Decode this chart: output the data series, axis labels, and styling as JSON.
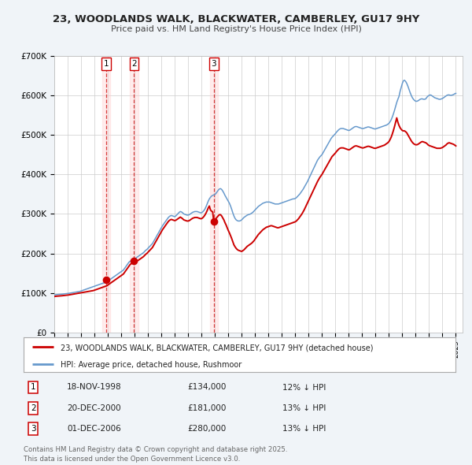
{
  "title": "23, WOODLANDS WALK, BLACKWATER, CAMBERLEY, GU17 9HY",
  "subtitle": "Price paid vs. HM Land Registry's House Price Index (HPI)",
  "background_color": "#f0f4f8",
  "plot_bg_color": "#ffffff",
  "ylim": [
    0,
    700000
  ],
  "yticks": [
    0,
    100000,
    200000,
    300000,
    400000,
    500000,
    600000,
    700000
  ],
  "ytick_labels": [
    "£0",
    "£100K",
    "£200K",
    "£300K",
    "£400K",
    "£500K",
    "£600K",
    "£700K"
  ],
  "xlim_start": 1995.0,
  "xlim_end": 2025.5,
  "xtick_years": [
    1995,
    1996,
    1997,
    1998,
    1999,
    2000,
    2001,
    2002,
    2003,
    2004,
    2005,
    2006,
    2007,
    2008,
    2009,
    2010,
    2011,
    2012,
    2013,
    2014,
    2015,
    2016,
    2017,
    2018,
    2019,
    2020,
    2021,
    2022,
    2023,
    2024,
    2025
  ],
  "red_line_color": "#cc0000",
  "blue_line_color": "#6699cc",
  "sale_marker_color": "#cc0000",
  "vline_color": "#cc0000",
  "vline_style": "--",
  "vline_alpha": 0.7,
  "sale_shade_color": "#ffcccc",
  "sale_shade_alpha": 0.35,
  "grid_color": "#cccccc",
  "legend_label_red": "23, WOODLANDS WALK, BLACKWATER, CAMBERLEY, GU17 9HY (detached house)",
  "legend_label_blue": "HPI: Average price, detached house, Rushmoor",
  "sales": [
    {
      "num": 1,
      "date": "18-NOV-1998",
      "year": 1998.88,
      "price": 134000,
      "pct": "12%",
      "dir": "↓"
    },
    {
      "num": 2,
      "date": "20-DEC-2000",
      "year": 2000.96,
      "price": 181000,
      "pct": "13%",
      "dir": "↓"
    },
    {
      "num": 3,
      "date": "01-DEC-2006",
      "year": 2006.92,
      "price": 280000,
      "pct": "13%",
      "dir": "↓"
    }
  ],
  "hpi_y": [
    95000,
    95500,
    95800,
    96000,
    96200,
    96500,
    96800,
    97000,
    97300,
    97500,
    97800,
    98000,
    98500,
    99000,
    99500,
    100000,
    100500,
    101000,
    101500,
    102000,
    102500,
    103000,
    103500,
    104000,
    105000,
    106000,
    107000,
    108000,
    109000,
    110000,
    111000,
    112000,
    113000,
    114000,
    115000,
    116000,
    117000,
    118000,
    119000,
    120000,
    121000,
    122000,
    123000,
    124000,
    125000,
    126000,
    127000,
    128000,
    130000,
    132000,
    134000,
    136000,
    138000,
    140000,
    142000,
    144000,
    146000,
    148000,
    150000,
    152000,
    154000,
    156000,
    158000,
    162000,
    166000,
    170000,
    174000,
    178000,
    180000,
    182000,
    184000,
    185000,
    186000,
    188000,
    190000,
    192000,
    194000,
    196000,
    198000,
    200000,
    202000,
    205000,
    208000,
    210000,
    213000,
    216000,
    219000,
    222000,
    225000,
    230000,
    235000,
    240000,
    245000,
    250000,
    255000,
    260000,
    265000,
    270000,
    274000,
    278000,
    282000,
    286000,
    290000,
    293000,
    295000,
    296000,
    295000,
    294000,
    293000,
    295000,
    298000,
    301000,
    304000,
    306000,
    305000,
    303000,
    300000,
    299000,
    298000,
    297000,
    297000,
    298000,
    300000,
    302000,
    304000,
    305000,
    306000,
    306000,
    306000,
    305000,
    304000,
    303000,
    303000,
    305000,
    308000,
    312000,
    318000,
    325000,
    332000,
    338000,
    342000,
    345000,
    347000,
    348000,
    349000,
    352000,
    356000,
    360000,
    363000,
    364000,
    362000,
    358000,
    353000,
    347000,
    342000,
    337000,
    332000,
    327000,
    320000,
    312000,
    303000,
    295000,
    289000,
    285000,
    283000,
    282000,
    282000,
    283000,
    285000,
    288000,
    291000,
    293000,
    295000,
    297000,
    298000,
    299000,
    300000,
    302000,
    304000,
    307000,
    310000,
    313000,
    316000,
    319000,
    321000,
    323000,
    325000,
    327000,
    328000,
    329000,
    330000,
    330000,
    330000,
    330000,
    329000,
    328000,
    327000,
    326000,
    325000,
    325000,
    325000,
    325000,
    326000,
    327000,
    328000,
    329000,
    330000,
    331000,
    332000,
    333000,
    334000,
    335000,
    336000,
    337000,
    338000,
    338000,
    339000,
    341000,
    344000,
    347000,
    350000,
    354000,
    358000,
    362000,
    367000,
    372000,
    377000,
    382000,
    388000,
    394000,
    400000,
    406000,
    412000,
    418000,
    424000,
    430000,
    436000,
    440000,
    444000,
    447000,
    450000,
    455000,
    460000,
    465000,
    470000,
    475000,
    480000,
    485000,
    490000,
    494000,
    497000,
    500000,
    503000,
    507000,
    510000,
    513000,
    515000,
    516000,
    516000,
    516000,
    515000,
    514000,
    513000,
    512000,
    511000,
    512000,
    514000,
    516000,
    518000,
    520000,
    521000,
    521000,
    520000,
    519000,
    518000,
    517000,
    516000,
    516000,
    517000,
    518000,
    519000,
    520000,
    520000,
    519000,
    518000,
    517000,
    516000,
    515000,
    515000,
    516000,
    517000,
    518000,
    519000,
    520000,
    521000,
    522000,
    523000,
    524000,
    525000,
    527000,
    529000,
    533000,
    538000,
    545000,
    553000,
    562000,
    572000,
    582000,
    590000,
    597000,
    610000,
    620000,
    630000,
    637000,
    638000,
    635000,
    630000,
    623000,
    615000,
    607000,
    600000,
    594000,
    590000,
    587000,
    585000,
    585000,
    586000,
    588000,
    590000,
    591000,
    591000,
    590000,
    590000,
    591000,
    595000,
    598000,
    600000,
    601000,
    600000,
    598000,
    596000,
    594000,
    593000,
    592000,
    591000,
    590000,
    590000,
    591000,
    592000,
    594000,
    596000,
    598000,
    600000,
    601000,
    601000,
    600000,
    600000,
    601000,
    602000,
    604000,
    605000
  ],
  "red_y": [
    91000,
    91500,
    91800,
    92000,
    92200,
    92500,
    92800,
    93000,
    93300,
    93500,
    93800,
    94000,
    94500,
    95000,
    95500,
    96000,
    96500,
    97000,
    97500,
    98000,
    98500,
    99000,
    99500,
    100000,
    100500,
    101000,
    101500,
    102000,
    102500,
    103000,
    103500,
    104000,
    104500,
    105000,
    105500,
    106000,
    107000,
    108000,
    109000,
    110000,
    111000,
    112000,
    113000,
    114000,
    115000,
    116000,
    117000,
    118000,
    120000,
    122000,
    124000,
    126000,
    128000,
    130000,
    132000,
    134000,
    136000,
    138000,
    140000,
    142000,
    144000,
    146000,
    148000,
    152000,
    156000,
    160000,
    164000,
    168000,
    172000,
    174000,
    176000,
    177000,
    178000,
    180000,
    181000,
    182000,
    184000,
    186000,
    188000,
    190000,
    192000,
    195000,
    198000,
    200000,
    203000,
    206000,
    209000,
    212000,
    215000,
    220000,
    225000,
    230000,
    235000,
    240000,
    245000,
    250000,
    255000,
    260000,
    264000,
    268000,
    272000,
    276000,
    280000,
    283000,
    285000,
    286000,
    285000,
    284000,
    283000,
    284000,
    286000,
    288000,
    290000,
    292000,
    290000,
    288000,
    285000,
    284000,
    283000,
    282000,
    282000,
    283000,
    285000,
    287000,
    289000,
    290000,
    291000,
    291000,
    291000,
    290000,
    289000,
    288000,
    288000,
    290000,
    293000,
    297000,
    302000,
    308000,
    315000,
    320000,
    310000,
    307000,
    305000,
    280000,
    285000,
    288000,
    292000,
    295000,
    298000,
    298000,
    295000,
    290000,
    285000,
    278000,
    272000,
    265000,
    258000,
    252000,
    245000,
    238000,
    230000,
    222000,
    217000,
    213000,
    210000,
    208000,
    207000,
    206000,
    205000,
    207000,
    209000,
    212000,
    215000,
    218000,
    220000,
    222000,
    224000,
    226000,
    229000,
    232000,
    236000,
    240000,
    244000,
    248000,
    251000,
    254000,
    257000,
    260000,
    262000,
    264000,
    266000,
    267000,
    268000,
    269000,
    270000,
    270000,
    269000,
    268000,
    267000,
    266000,
    265000,
    265000,
    266000,
    267000,
    268000,
    269000,
    270000,
    271000,
    272000,
    273000,
    274000,
    275000,
    276000,
    277000,
    278000,
    279000,
    280000,
    282000,
    285000,
    288000,
    292000,
    296000,
    300000,
    305000,
    310000,
    316000,
    322000,
    328000,
    334000,
    340000,
    346000,
    352000,
    358000,
    364000,
    370000,
    376000,
    382000,
    387000,
    392000,
    396000,
    400000,
    405000,
    410000,
    415000,
    420000,
    425000,
    430000,
    435000,
    440000,
    445000,
    448000,
    451000,
    454000,
    458000,
    461000,
    464000,
    466000,
    467000,
    467000,
    467000,
    466000,
    465000,
    464000,
    463000,
    462000,
    463000,
    465000,
    467000,
    469000,
    471000,
    472000,
    472000,
    471000,
    470000,
    469000,
    468000,
    467000,
    467000,
    468000,
    469000,
    470000,
    471000,
    471000,
    470000,
    469000,
    468000,
    467000,
    466000,
    466000,
    467000,
    468000,
    469000,
    470000,
    471000,
    472000,
    473000,
    474000,
    476000,
    478000,
    480000,
    483000,
    488000,
    494000,
    502000,
    511000,
    521000,
    532000,
    543000,
    532000,
    524000,
    518000,
    514000,
    511000,
    510000,
    510000,
    508000,
    505000,
    500000,
    495000,
    490000,
    485000,
    481000,
    478000,
    476000,
    475000,
    475000,
    476000,
    478000,
    480000,
    482000,
    483000,
    482000,
    481000,
    480000,
    478000,
    475000,
    473000,
    472000,
    471000,
    470000,
    469000,
    468000,
    467000,
    466000,
    466000,
    466000,
    466000,
    467000,
    468000,
    470000,
    472000,
    474000,
    477000,
    479000,
    480000,
    479000,
    478000,
    477000,
    476000,
    474000,
    472000
  ]
}
